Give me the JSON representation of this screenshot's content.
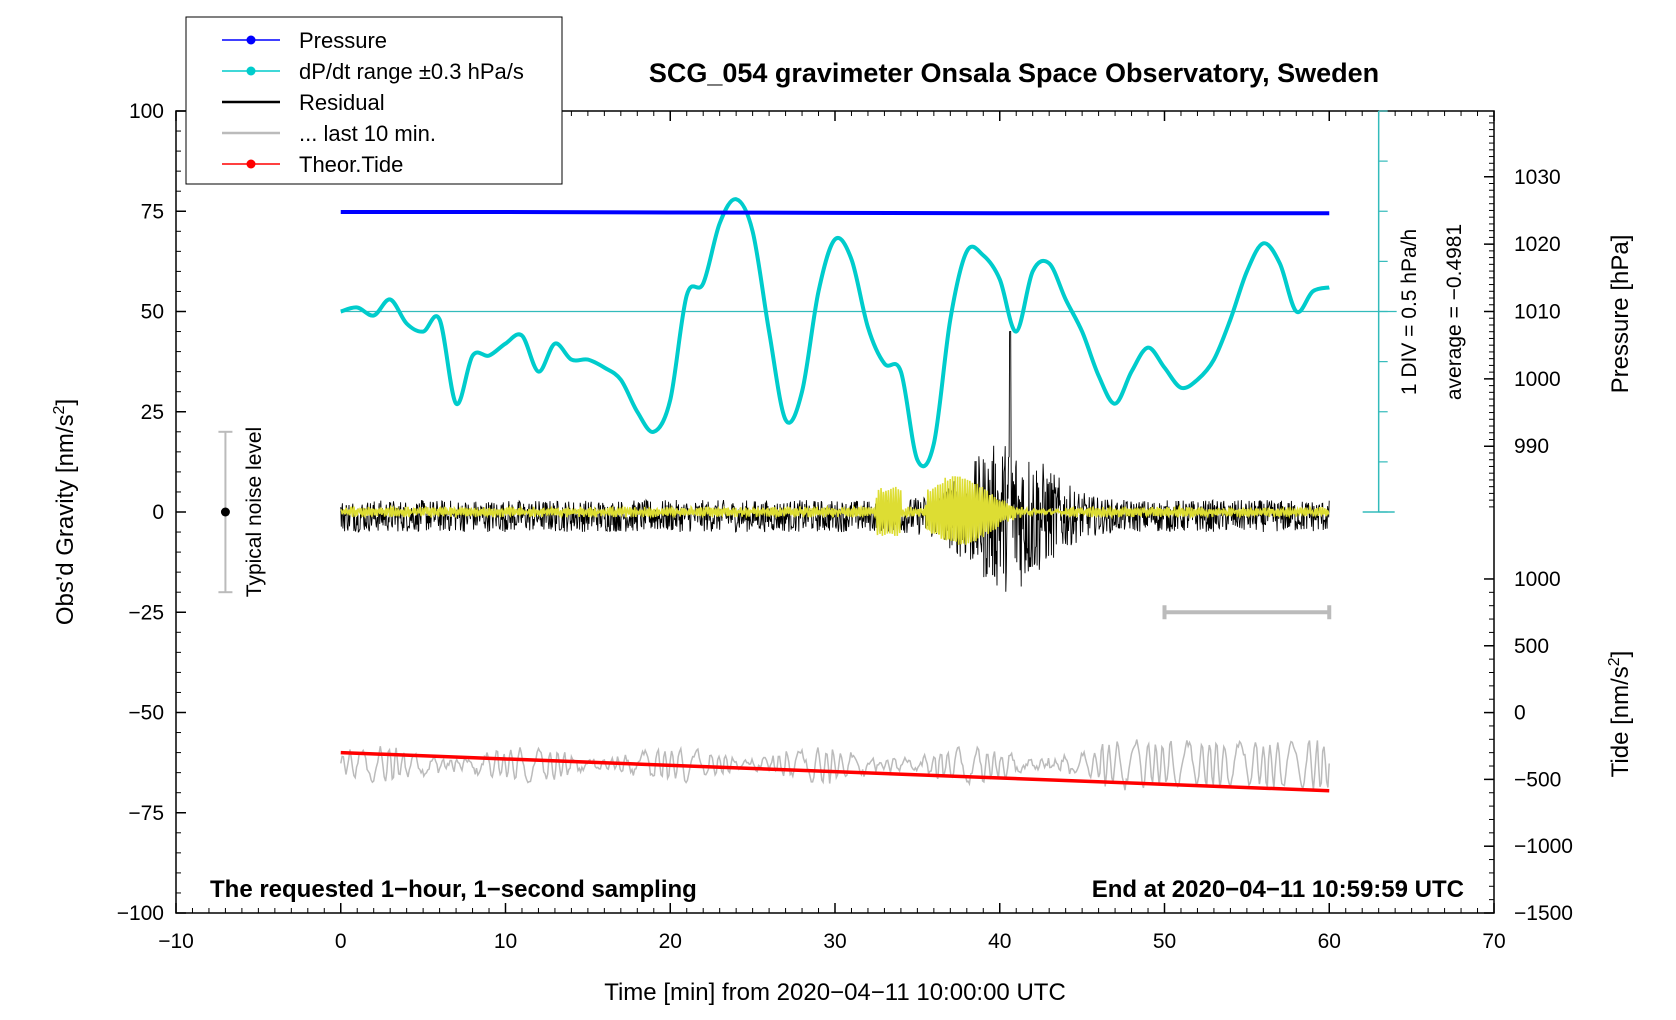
{
  "chart_data": {
    "type": "line",
    "title": "SCG_054 gravimeter Onsala Space Observatory, Sweden",
    "xlabel": "Time [min] from 2020−04−11 10:00:00 UTC",
    "ylabel_left": "Obs’d Gravity [nm/s",
    "ylabel_left_sup": "2",
    "ylabel_left_end": "]",
    "ylabel_pressure": "Pressure [hPa]",
    "ylabel_tide": "Tide [nm/s",
    "ylabel_tide_sup": "2",
    "ylabel_tide_end": "]",
    "xlim": [
      -10,
      70
    ],
    "ylim_left": [
      -100,
      100
    ],
    "x_ticks": [
      "−10",
      "0",
      "10",
      "20",
      "30",
      "40",
      "50",
      "60",
      "70"
    ],
    "x_tick_values": [
      -10,
      0,
      10,
      20,
      30,
      40,
      50,
      60,
      70
    ],
    "y_left_ticks": [
      "100",
      "75",
      "50",
      "25",
      "0",
      "−25",
      "−50",
      "−75",
      "−100"
    ],
    "y_left_tick_values": [
      100,
      75,
      50,
      25,
      0,
      -25,
      -50,
      -75,
      -100
    ],
    "pressure_ticks": [
      "1030",
      "1020",
      "1010",
      "1000",
      "990"
    ],
    "pressure_tick_values": [
      1030,
      1020,
      1010,
      1000,
      990
    ],
    "pressure_axis_map": {
      "pressure": [
        1010,
        1030
      ],
      "gravity": [
        50,
        83.6
      ]
    },
    "tide_ticks": [
      "1000",
      "500",
      "0",
      "−500",
      "−1000",
      "−1500"
    ],
    "tide_tick_values": [
      1000,
      500,
      0,
      -500,
      -1000,
      -1500
    ],
    "tide_axis_map": {
      "tide": [
        -1500,
        1000
      ],
      "gravity": [
        -100,
        -16.7
      ]
    },
    "legend": [
      {
        "label": "Pressure",
        "color": "#0000ff",
        "marker": true
      },
      {
        "label": "dP/dt range ±0.3 hPa/s",
        "color": "#00cccc",
        "marker": true
      },
      {
        "label": "Residual",
        "color": "#000000",
        "marker": false
      },
      {
        "label": "... last 10 min.",
        "color": "#bbbbbb",
        "marker": false
      },
      {
        "label": "Theor.Tide",
        "color": "#ff0000",
        "marker": true
      }
    ],
    "noise_label": "Typical noise level",
    "noise_level": {
      "x": -7,
      "y_center": 0,
      "half_range": 20
    },
    "ddt_annotation_1": "1 DIV = 0.5 hPa/h",
    "ddt_annotation_2": "average = −0.4981",
    "ddt_scale_x": 63,
    "ddt_baseline": 50,
    "bottom_left_note": "The requested 1−hour, 1−second sampling",
    "bottom_right_note": "End at 2020−04−11 10:59:59 UTC",
    "last10_bar": {
      "x": [
        50,
        60
      ],
      "y": -25
    },
    "series": [
      {
        "name": "Pressure",
        "color": "#0000ff",
        "x": [
          0,
          10,
          20,
          30,
          40,
          50,
          60
        ],
        "values": [
          74.8,
          74.8,
          74.7,
          74.6,
          74.5,
          74.5,
          74.5
        ]
      },
      {
        "name": "dP/dt",
        "color": "#00cccc",
        "x": [
          0,
          1,
          2,
          3,
          4,
          5,
          6,
          7,
          8,
          9,
          10,
          11,
          12,
          13,
          14,
          15,
          16,
          17,
          18,
          19,
          20,
          21,
          22,
          23,
          24,
          25,
          26,
          27,
          28,
          29,
          30,
          31,
          32,
          33,
          34,
          35,
          36,
          37,
          38,
          39,
          40,
          41,
          42,
          43,
          44,
          45,
          46,
          47,
          48,
          49,
          50,
          51,
          52,
          53,
          54,
          55,
          56,
          57,
          58,
          59,
          60
        ],
        "values": [
          50,
          51,
          49,
          53,
          47,
          45,
          48,
          27,
          39,
          39,
          42,
          44,
          35,
          42,
          38,
          38,
          36,
          33,
          25,
          20,
          28,
          54,
          57,
          72,
          78,
          70,
          45,
          23,
          30,
          55,
          68,
          63,
          46,
          37,
          35,
          13,
          17,
          48,
          65,
          64,
          58,
          45,
          60,
          62,
          53,
          45,
          34,
          27,
          35,
          41,
          36,
          31,
          33,
          38,
          48,
          60,
          67,
          62,
          50,
          55,
          56
        ]
      },
      {
        "name": "Residual",
        "color": "#000000",
        "x_range": [
          0,
          60
        ],
        "center": -1
      },
      {
        "name": "Residual filtered",
        "color": "#dddd33",
        "x_range": [
          0,
          60
        ],
        "center": 0
      },
      {
        "name": "Last 10 min.",
        "color": "#bbbbbb",
        "x_range": [
          0,
          60
        ],
        "center": -63
      },
      {
        "name": "Theor.Tide",
        "color": "#ff0000",
        "x": [
          0,
          60
        ],
        "values": [
          -60,
          -69.5
        ]
      }
    ]
  }
}
